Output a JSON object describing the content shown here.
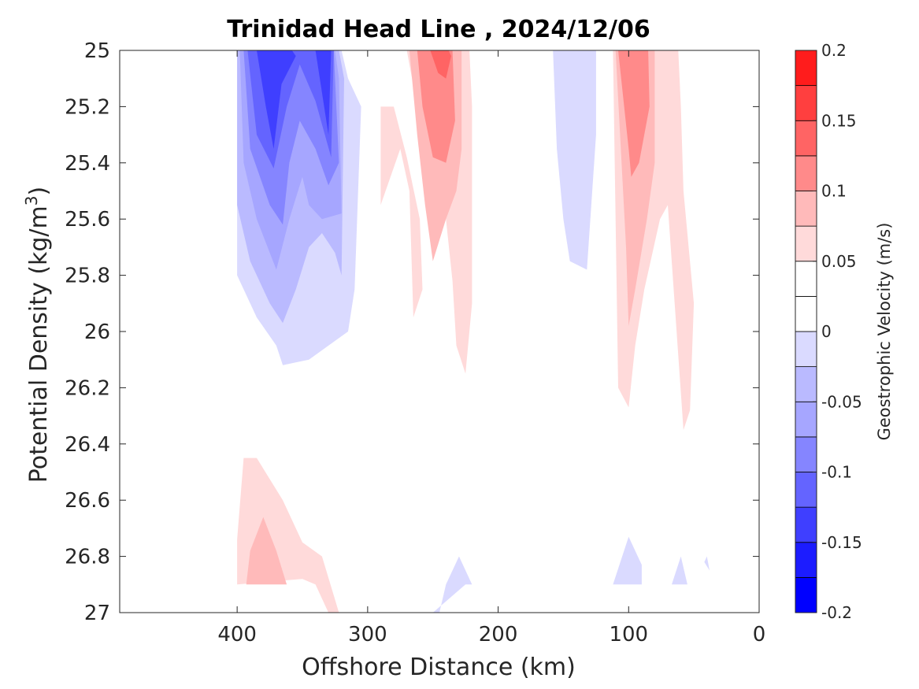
{
  "chart_data": {
    "type": "contour",
    "title": "Trinidad Head Line , 2024/12/06",
    "xlabel": "Offshore Distance (km)",
    "ylabel_main": "Potential Density (kg/m",
    "ylabel_sup": "3",
    "ylabel_close": ")",
    "xlim": [
      490,
      0
    ],
    "ylim": [
      27,
      25
    ],
    "x_ticks": [
      400,
      300,
      200,
      100,
      0
    ],
    "x_tick_labels": [
      "400",
      "300",
      "200",
      "100",
      "0"
    ],
    "y_ticks": [
      25,
      25.2,
      25.4,
      25.6,
      25.8,
      26,
      26.2,
      26.4,
      26.6,
      26.8,
      27
    ],
    "y_tick_labels": [
      "25",
      "25.2",
      "25.4",
      "25.6",
      "25.8",
      "26",
      "26.2",
      "26.4",
      "26.6",
      "26.8",
      "27"
    ],
    "y_reversed": true,
    "grid": false,
    "colorbar": {
      "label": "Geostrophic Velocity (m/s)",
      "min": -0.2,
      "max": 0.2,
      "levels": [
        -0.2,
        -0.175,
        -0.15,
        -0.125,
        -0.1,
        -0.075,
        -0.05,
        -0.025,
        0,
        0.025,
        0.05,
        0.075,
        0.1,
        0.125,
        0.15,
        0.175,
        0.2
      ],
      "colors": [
        "#0000ff",
        "#2020ff",
        "#4040ff",
        "#6060ff",
        "#8080ff",
        "#a0a0ff",
        "#c0c0ff",
        "#ffffff",
        "#ffffff",
        "#ffc0c0",
        "#ffa0a0",
        "#ff8080",
        "#ff6060",
        "#ff4040",
        "#ff2020",
        "#ff0000"
      ],
      "ticks": [
        -0.2,
        -0.15,
        -0.1,
        -0.05,
        0,
        0.05,
        0.1,
        0.15,
        0.2
      ],
      "tick_labels": [
        "-0.2",
        "-0.15",
        "-0.1",
        "-0.05",
        "0",
        "0.05",
        "0.1",
        "0.15",
        "0.2"
      ],
      "display_colors": [
        "#0000ff",
        "#1c1cff",
        "#3f3fff",
        "#6464ff",
        "#8585ff",
        "#a6a6ff",
        "#babaff",
        "#dadaff",
        "#ffffff",
        "#ffffff",
        "#ffdada",
        "#ffbaba",
        "#ff8a8a",
        "#ff6464",
        "#ff3f3f",
        "#ff1c1c"
      ]
    },
    "regions": [
      {
        "level": -0.025,
        "color": "#dadaff",
        "points": [
          [
            400,
            25
          ],
          [
            400,
            25.8
          ],
          [
            385,
            25.95
          ],
          [
            370,
            26.05
          ],
          [
            365,
            26.12
          ],
          [
            345,
            26.1
          ],
          [
            330,
            26.05
          ],
          [
            315,
            26
          ],
          [
            310,
            25.85
          ],
          [
            305,
            25.2
          ],
          [
            315,
            25.1
          ],
          [
            320,
            25
          ]
        ]
      },
      {
        "level": -0.05,
        "color": "#babaff",
        "points": [
          [
            400,
            25
          ],
          [
            400,
            25.55
          ],
          [
            390,
            25.75
          ],
          [
            375,
            25.9
          ],
          [
            365,
            25.97
          ],
          [
            355,
            25.85
          ],
          [
            345,
            25.7
          ],
          [
            335,
            25.65
          ],
          [
            325,
            25.72
          ],
          [
            320,
            25.8
          ],
          [
            318,
            25.1
          ],
          [
            322,
            25
          ]
        ]
      },
      {
        "level": -0.075,
        "color": "#a6a6ff",
        "points": [
          [
            398,
            25
          ],
          [
            395,
            25.4
          ],
          [
            385,
            25.6
          ],
          [
            370,
            25.78
          ],
          [
            360,
            25.6
          ],
          [
            350,
            25.45
          ],
          [
            345,
            25.55
          ],
          [
            335,
            25.6
          ],
          [
            320,
            25.58
          ],
          [
            322,
            25.1
          ],
          [
            325,
            25
          ]
        ]
      },
      {
        "level": -0.1,
        "color": "#8585ff",
        "points": [
          [
            395,
            25
          ],
          [
            390,
            25.35
          ],
          [
            375,
            25.55
          ],
          [
            365,
            25.62
          ],
          [
            360,
            25.4
          ],
          [
            352,
            25.25
          ],
          [
            340,
            25.35
          ],
          [
            330,
            25.48
          ],
          [
            322,
            25.4
          ],
          [
            326,
            25
          ]
        ]
      },
      {
        "level": -0.125,
        "color": "#6464ff",
        "points": [
          [
            392,
            25
          ],
          [
            385,
            25.3
          ],
          [
            372,
            25.42
          ],
          [
            362,
            25.2
          ],
          [
            352,
            25.05
          ],
          [
            340,
            25.18
          ],
          [
            328,
            25.38
          ],
          [
            326,
            25
          ]
        ]
      },
      {
        "level": -0.15,
        "color": "#3f3fff",
        "points": [
          [
            385,
            25
          ],
          [
            378,
            25.2
          ],
          [
            372,
            25.35
          ],
          [
            366,
            25.12
          ],
          [
            355,
            25.02
          ],
          [
            358,
            25
          ],
          [
            340,
            25
          ],
          [
            336,
            25.12
          ],
          [
            330,
            25.3
          ],
          [
            328,
            25
          ]
        ]
      },
      {
        "level": 0.025,
        "color": "#ffdada",
        "points": [
          [
            270,
            25
          ],
          [
            260,
            25.25
          ],
          [
            240,
            25.6
          ],
          [
            235,
            25.82
          ],
          [
            232,
            26.05
          ],
          [
            225,
            26.15
          ],
          [
            220,
            25.9
          ],
          [
            220,
            25.2
          ],
          [
            222,
            25
          ]
        ]
      },
      {
        "level": 0.025,
        "color": "#ffdada",
        "points": [
          [
            290,
            25.2
          ],
          [
            280,
            25.2
          ],
          [
            270,
            25.38
          ],
          [
            260,
            25.6
          ],
          [
            258,
            25.85
          ],
          [
            265,
            25.95
          ],
          [
            268,
            25.5
          ],
          [
            275,
            25.35
          ],
          [
            290,
            25.55
          ]
        ]
      },
      {
        "level": 0.05,
        "color": "#ffbaba",
        "points": [
          [
            268,
            25
          ],
          [
            262,
            25.3
          ],
          [
            256,
            25.55
          ],
          [
            250,
            25.75
          ],
          [
            240,
            25.6
          ],
          [
            232,
            25.5
          ],
          [
            228,
            25.35
          ],
          [
            228,
            25
          ]
        ]
      },
      {
        "level": 0.075,
        "color": "#ff8a8a",
        "points": [
          [
            262,
            25
          ],
          [
            258,
            25.2
          ],
          [
            250,
            25.38
          ],
          [
            240,
            25.4
          ],
          [
            233,
            25.25
          ],
          [
            235,
            25
          ]
        ]
      },
      {
        "level": 0.1,
        "color": "#ff6464",
        "points": [
          [
            252,
            25
          ],
          [
            246,
            25.08
          ],
          [
            240,
            25.1
          ],
          [
            236,
            25.02
          ],
          [
            238,
            25
          ]
        ]
      },
      {
        "level": -0.025,
        "color": "#dadaff",
        "points": [
          [
            158,
            25
          ],
          [
            155,
            25.35
          ],
          [
            150,
            25.6
          ],
          [
            145,
            25.75
          ],
          [
            132,
            25.78
          ],
          [
            125,
            25.3
          ],
          [
            125,
            25
          ]
        ]
      },
      {
        "level": 0.025,
        "color": "#ffdada",
        "points": [
          [
            112,
            25
          ],
          [
            108,
            26.2
          ],
          [
            100,
            26.27
          ],
          [
            95,
            26.05
          ],
          [
            88,
            25.85
          ],
          [
            76,
            25.6
          ],
          [
            70,
            25.55
          ],
          [
            58,
            26.35
          ],
          [
            53,
            26.28
          ],
          [
            50,
            25.9
          ],
          [
            58,
            25.5
          ],
          [
            60,
            25.2
          ],
          [
            62,
            25
          ]
        ]
      },
      {
        "level": 0.05,
        "color": "#ffbaba",
        "points": [
          [
            110,
            25
          ],
          [
            102,
            25.7
          ],
          [
            100,
            25.98
          ],
          [
            95,
            25.85
          ],
          [
            86,
            25.6
          ],
          [
            80,
            25.4
          ],
          [
            80,
            25.15
          ],
          [
            80,
            25
          ]
        ]
      },
      {
        "level": 0.075,
        "color": "#ff8a8a",
        "points": [
          [
            108,
            25
          ],
          [
            100,
            25.35
          ],
          [
            98,
            25.45
          ],
          [
            92,
            25.4
          ],
          [
            84,
            25.2
          ],
          [
            85,
            25
          ]
        ]
      },
      {
        "level": 0.025,
        "color": "#ffdada",
        "points": [
          [
            400,
            26.74
          ],
          [
            395,
            26.45
          ],
          [
            385,
            26.45
          ],
          [
            365,
            26.6
          ],
          [
            350,
            26.75
          ],
          [
            335,
            26.8
          ],
          [
            322,
            27
          ],
          [
            330,
            27
          ],
          [
            340,
            26.9
          ],
          [
            350,
            26.88
          ],
          [
            400,
            26.9
          ]
        ]
      },
      {
        "level": 0.05,
        "color": "#ffbaba",
        "points": [
          [
            393,
            26.9
          ],
          [
            390,
            26.78
          ],
          [
            380,
            26.66
          ],
          [
            370,
            26.78
          ],
          [
            362,
            26.9
          ]
        ]
      },
      {
        "level": -0.025,
        "color": "#dadaff",
        "points": [
          [
            245,
            27
          ],
          [
            240,
            26.9
          ],
          [
            230,
            26.8
          ],
          [
            220,
            26.9
          ],
          [
            225,
            26.9
          ],
          [
            250,
            27
          ]
        ]
      },
      {
        "level": -0.025,
        "color": "#dadaff",
        "points": [
          [
            112,
            26.9
          ],
          [
            100,
            26.73
          ],
          [
            90,
            26.83
          ],
          [
            90,
            26.9
          ]
        ]
      },
      {
        "level": -0.025,
        "color": "#dadaff",
        "points": [
          [
            67,
            26.9
          ],
          [
            60,
            26.8
          ],
          [
            55,
            26.9
          ]
        ]
      },
      {
        "level": -0.025,
        "color": "#dadaff",
        "points": [
          [
            42,
            26.82
          ],
          [
            40,
            26.8
          ],
          [
            38,
            26.85
          ]
        ]
      }
    ]
  }
}
